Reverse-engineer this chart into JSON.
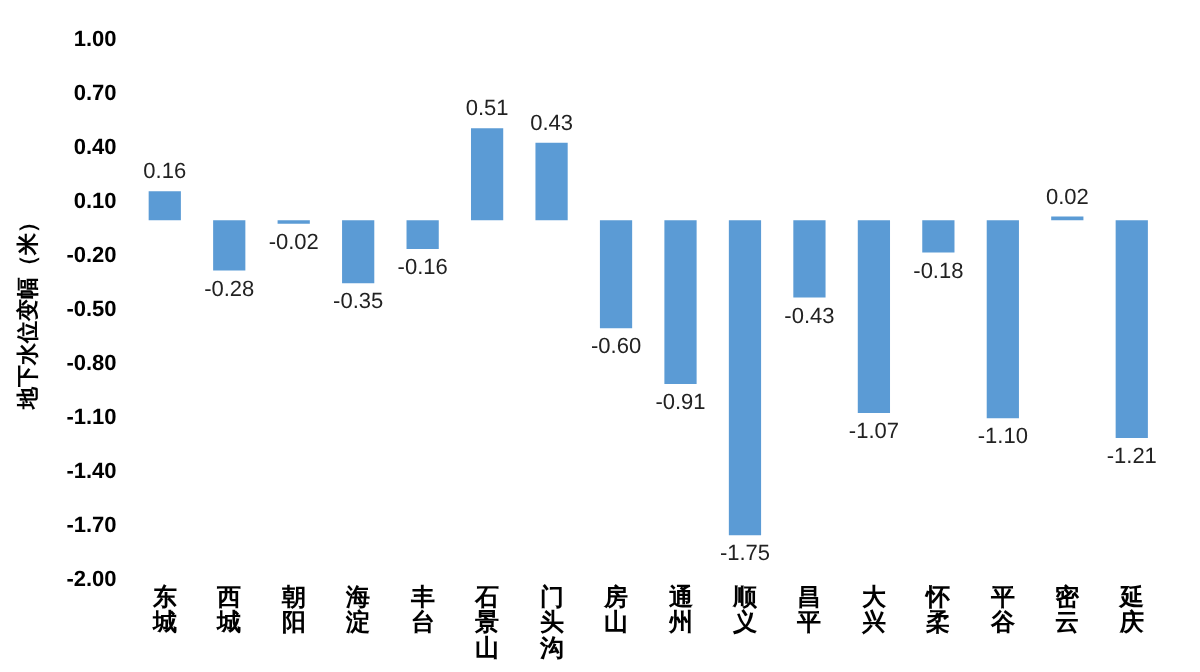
{
  "chart_data": {
    "type": "bar",
    "ylabel": "地下水位变幅（米）",
    "categories": [
      "东城",
      "西城",
      "朝阳",
      "海淀",
      "丰台",
      "石景山",
      "门头沟",
      "房山",
      "通州",
      "顺义",
      "昌平",
      "大兴",
      "怀柔",
      "平谷",
      "密云",
      "延庆"
    ],
    "values": [
      0.16,
      -0.28,
      -0.02,
      -0.35,
      -0.16,
      0.51,
      0.43,
      -0.6,
      -0.91,
      -1.75,
      -0.43,
      -1.07,
      -0.18,
      -1.1,
      0.02,
      -1.21
    ],
    "value_labels": [
      "0.16",
      "-0.28",
      "-0.02",
      "-0.35",
      "-0.16",
      "0.51",
      "0.43",
      "-0.60",
      "-0.91",
      "-1.75",
      "-0.43",
      "-1.07",
      "-0.18",
      "-1.10",
      "0.02",
      "-1.21"
    ],
    "color": "#5b9bd5",
    "ylim": [
      -2.0,
      1.0
    ],
    "yticks": [
      {
        "value": -2.0,
        "label": "-2.00"
      },
      {
        "value": -1.7,
        "label": "-1.70"
      },
      {
        "value": -1.4,
        "label": "-1.40"
      },
      {
        "value": -1.1,
        "label": "-1.10"
      },
      {
        "value": -0.8,
        "label": "-0.80"
      },
      {
        "value": -0.5,
        "label": "-0.50"
      },
      {
        "value": -0.2,
        "label": "-0.20"
      },
      {
        "value": 0.1,
        "label": "0.10"
      },
      {
        "value": 0.4,
        "label": "0.40"
      },
      {
        "value": 0.7,
        "label": "0.70"
      },
      {
        "value": 1.0,
        "label": "1.00"
      }
    ],
    "grid": false,
    "legend": false
  }
}
